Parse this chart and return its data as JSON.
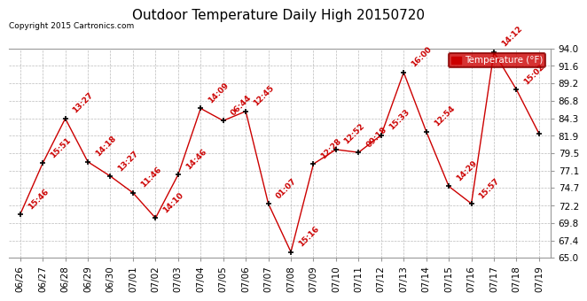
{
  "title": "Outdoor Temperature Daily High 20150720",
  "copyright": "Copyright 2015 Cartronics.com",
  "legend_label": "Temperature (°F)",
  "dates": [
    "06/26",
    "06/27",
    "06/28",
    "06/29",
    "06/30",
    "07/01",
    "07/02",
    "07/03",
    "07/04",
    "07/05",
    "07/06",
    "07/07",
    "07/08",
    "07/09",
    "07/10",
    "07/11",
    "07/12",
    "07/13",
    "07/14",
    "07/15",
    "07/16",
    "07/17",
    "07/18",
    "07/19"
  ],
  "values": [
    71.0,
    78.1,
    84.3,
    78.3,
    76.3,
    74.0,
    70.5,
    76.5,
    85.7,
    84.0,
    85.3,
    72.5,
    65.8,
    78.0,
    80.0,
    79.6,
    82.0,
    90.7,
    82.5,
    74.9,
    72.5,
    93.5,
    88.3,
    82.2
  ],
  "labels": [
    "15:46",
    "15:51",
    "13:27",
    "14:18",
    "13:27",
    "11:46",
    "14:10",
    "14:46",
    "14:09",
    "06:44",
    "12:45",
    "01:07",
    "15:16",
    "12:28",
    "12:52",
    "09:18",
    "15:33",
    "16:00",
    "12:54",
    "14:29",
    "15:57",
    "14:12",
    "15:02",
    ""
  ],
  "ylim": [
    65.0,
    94.0
  ],
  "yticks": [
    65.0,
    67.4,
    69.8,
    72.2,
    74.7,
    77.1,
    79.5,
    81.9,
    84.3,
    86.8,
    89.2,
    91.6,
    94.0
  ],
  "line_color": "#cc0000",
  "marker_color": "#000000",
  "label_color": "#cc0000",
  "background_color": "#ffffff",
  "grid_color": "#bbbbbb",
  "title_fontsize": 11,
  "label_fontsize": 6.5,
  "tick_fontsize": 7.5
}
